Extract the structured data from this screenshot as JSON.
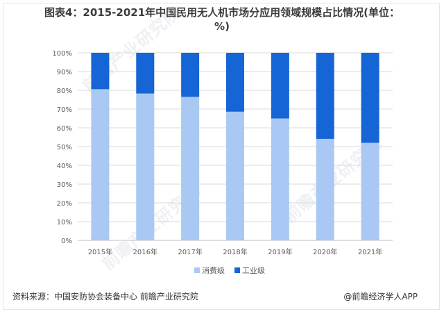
{
  "header": {
    "title": "图表4：2015-2021年中国民用无人机市场分应用领域规模占比情况(单位：%)"
  },
  "footer": {
    "source": "资料来源：中国安防协会装备中心 前瞻产业研究院",
    "credit": "@前瞻经济学人APP"
  },
  "watermarks": [
    "前瞻产业研究院",
    "前瞻产业研究院",
    "前瞻产业研究院"
  ],
  "chart_data": {
    "type": "bar",
    "stacked": true,
    "categories": [
      "2015年",
      "2016年",
      "2017年",
      "2018年",
      "2019年",
      "2020年",
      "2021年"
    ],
    "series": [
      {
        "name": "消费级",
        "color": "#a9c8f3",
        "values": [
          80.6,
          78.3,
          76.5,
          68.6,
          65.0,
          54.1,
          52.0
        ]
      },
      {
        "name": "工业级",
        "color": "#1565d6",
        "values": [
          19.4,
          21.7,
          23.5,
          31.4,
          35.0,
          45.9,
          48.0
        ]
      }
    ],
    "y_ticks": [
      "0%",
      "10%",
      "20%",
      "30%",
      "40%",
      "50%",
      "60%",
      "70%",
      "80%",
      "90%",
      "100%"
    ],
    "ylim": [
      0,
      100
    ],
    "grid": true,
    "legend_position": "bottom-center"
  }
}
